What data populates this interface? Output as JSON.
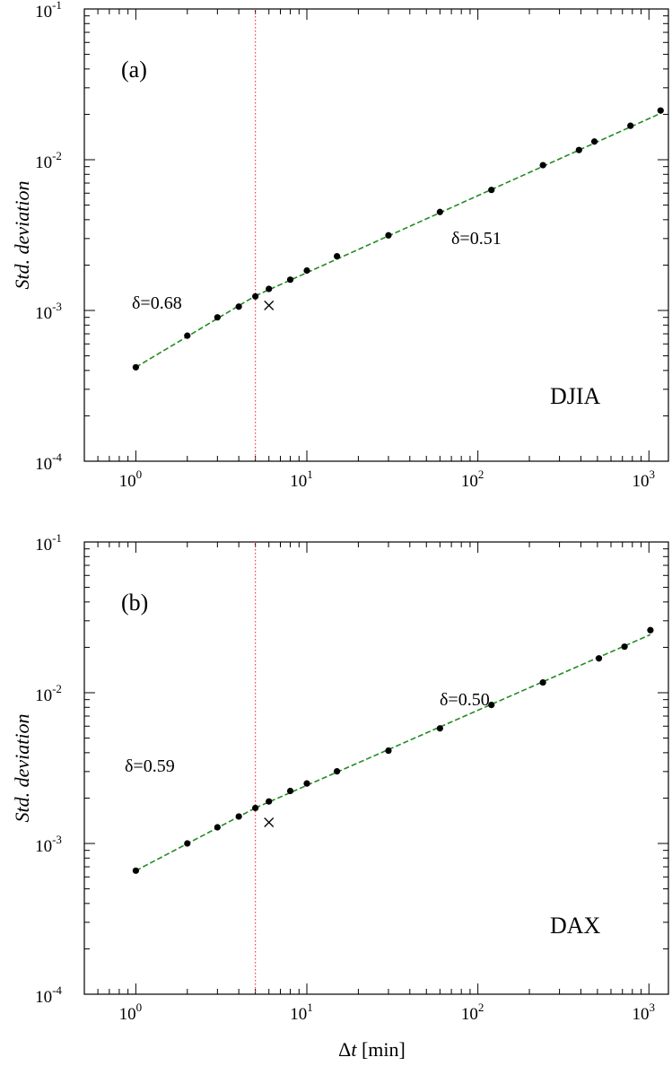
{
  "chart_data": [
    {
      "type": "scatter",
      "scale": "log-log",
      "panel_label": "(a)",
      "market": "DJIA",
      "xlabel": "",
      "ylabel": "Std. deviation",
      "xlim": [
        0.5,
        1300
      ],
      "ylim": [
        0.0001,
        0.1
      ],
      "x_ticks": [
        {
          "base": "10",
          "exp": "0"
        },
        {
          "base": "10",
          "exp": "1"
        },
        {
          "base": "10",
          "exp": "2"
        },
        {
          "base": "10",
          "exp": "3"
        }
      ],
      "y_ticks": [
        {
          "base": "10",
          "exp": "-4"
        },
        {
          "base": "10",
          "exp": "-3"
        },
        {
          "base": "10",
          "exp": "-2"
        },
        {
          "base": "10",
          "exp": "-1"
        }
      ],
      "vline_x": 5,
      "points": [
        {
          "x": 1,
          "y": 0.00042
        },
        {
          "x": 2,
          "y": 0.00068
        },
        {
          "x": 3,
          "y": 0.0009
        },
        {
          "x": 4,
          "y": 0.00106
        },
        {
          "x": 5,
          "y": 0.00124
        },
        {
          "x": 6,
          "y": 0.00139
        },
        {
          "x": 8,
          "y": 0.0016
        },
        {
          "x": 10,
          "y": 0.00184
        },
        {
          "x": 15,
          "y": 0.00229
        },
        {
          "x": 30,
          "y": 0.00315
        },
        {
          "x": 60,
          "y": 0.0045
        },
        {
          "x": 120,
          "y": 0.0063
        },
        {
          "x": 240,
          "y": 0.0092
        },
        {
          "x": 390,
          "y": 0.0116
        },
        {
          "x": 480,
          "y": 0.0132
        },
        {
          "x": 780,
          "y": 0.0168
        },
        {
          "x": 1170,
          "y": 0.0212
        }
      ],
      "fit": [
        {
          "x": [
            1,
            5
          ],
          "y": [
            0.00042,
            0.00125
          ],
          "label": "δ=0.68"
        },
        {
          "x": [
            5,
            1170
          ],
          "y": [
            0.00125,
            0.0203
          ],
          "label": "δ=0.51"
        }
      ],
      "cross_point": {
        "x": 6,
        "y": 0.00108
      }
    },
    {
      "type": "scatter",
      "scale": "log-log",
      "panel_label": "(b)",
      "market": "DAX",
      "xlabel": "Δt [min]",
      "ylabel": "Std. deviation",
      "xlim": [
        0.5,
        1300
      ],
      "ylim": [
        0.0001,
        0.1
      ],
      "x_ticks": [
        {
          "base": "10",
          "exp": "0"
        },
        {
          "base": "10",
          "exp": "1"
        },
        {
          "base": "10",
          "exp": "2"
        },
        {
          "base": "10",
          "exp": "3"
        }
      ],
      "y_ticks": [
        {
          "base": "10",
          "exp": "-4"
        },
        {
          "base": "10",
          "exp": "-3"
        },
        {
          "base": "10",
          "exp": "-2"
        },
        {
          "base": "10",
          "exp": "-1"
        }
      ],
      "vline_x": 5,
      "points": [
        {
          "x": 1,
          "y": 0.00066
        },
        {
          "x": 2,
          "y": 0.001
        },
        {
          "x": 3,
          "y": 0.00128
        },
        {
          "x": 4,
          "y": 0.00151
        },
        {
          "x": 5,
          "y": 0.00172
        },
        {
          "x": 6,
          "y": 0.0019
        },
        {
          "x": 8,
          "y": 0.00223
        },
        {
          "x": 10,
          "y": 0.0025
        },
        {
          "x": 15,
          "y": 0.00301
        },
        {
          "x": 30,
          "y": 0.00413
        },
        {
          "x": 60,
          "y": 0.0058
        },
        {
          "x": 120,
          "y": 0.0083
        },
        {
          "x": 240,
          "y": 0.0117
        },
        {
          "x": 510,
          "y": 0.0169
        },
        {
          "x": 720,
          "y": 0.0202
        },
        {
          "x": 1020,
          "y": 0.026
        }
      ],
      "fit": [
        {
          "x": [
            1,
            5
          ],
          "y": [
            0.00066,
            0.00172
          ],
          "label": "δ=0.59"
        },
        {
          "x": [
            5,
            1020
          ],
          "y": [
            0.00172,
            0.0243
          ],
          "label": "δ=0.50"
        }
      ],
      "cross_point": {
        "x": 6,
        "y": 0.00138
      }
    }
  ],
  "colors": {
    "fit": "#228B22",
    "vline": "#ff3b3b",
    "point": "#000000"
  }
}
